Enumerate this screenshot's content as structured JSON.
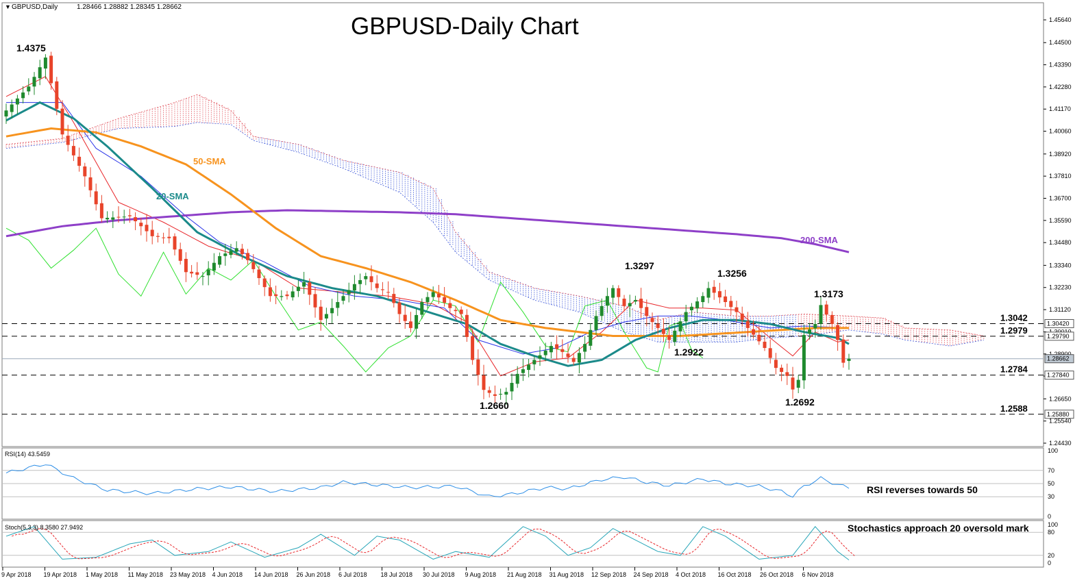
{
  "chart_data": {
    "type": "candlestick",
    "symbol_header": "GBPUSD,Daily",
    "ohlc_header": "1.28466 1.28882 1.28345 1.28662",
    "title": "GBPUSD-Daily Chart",
    "y_axis_ticks": [
      "1.45640",
      "1.44500",
      "1.43390",
      "1.42280",
      "1.41170",
      "1.40060",
      "1.38920",
      "1.37810",
      "1.36700",
      "1.35590",
      "1.34480",
      "1.33340",
      "1.32230",
      "1.31120",
      "1.30010",
      "1.28900",
      "1.27790",
      "1.26650",
      "1.25540",
      "1.24430"
    ],
    "ylim": [
      1.2443,
      1.4609
    ],
    "x_axis_labels": [
      "9 Apr 2018",
      "19 Apr 2018",
      "1 May 2018",
      "11 May 2018",
      "23 May 2018",
      "4 Jun 2018",
      "14 Jun 2018",
      "26 Jun 2018",
      "6 Jul 2018",
      "18 Jul 2018",
      "30 Jul 2018",
      "9 Aug 2018",
      "21 Aug 2018",
      "31 Aug 2018",
      "12 Sep 2018",
      "24 Sep 2018",
      "4 Oct 2018",
      "16 Oct 2018",
      "26 Oct 2018",
      "6 Nov 2018"
    ],
    "price_badges": [
      {
        "text": "1.30420",
        "value": 1.3042,
        "style": "outline"
      },
      {
        "text": "1.29790",
        "value": 1.2979,
        "style": "outline"
      },
      {
        "text": "1.28662",
        "value": 1.28662,
        "style": "solid"
      },
      {
        "text": "1.27840",
        "value": 1.2784,
        "style": "outline"
      },
      {
        "text": "1.25880",
        "value": 1.2588,
        "style": "outline"
      }
    ],
    "horizontal_levels": [
      {
        "label": "1.3042",
        "value": 1.3042
      },
      {
        "label": "1.2979",
        "value": 1.2979
      },
      {
        "label": "1.2784",
        "value": 1.2784
      },
      {
        "label": "1.2588",
        "value": 1.2588
      }
    ],
    "peak_annotations": [
      {
        "text": "1.4375",
        "value": 1.4375,
        "bar": 7
      },
      {
        "text": "1.2660",
        "value": 1.266,
        "bar": 85
      },
      {
        "text": "1.3297",
        "value": 1.3297,
        "bar": 108
      },
      {
        "text": "1.2922",
        "value": 1.2922,
        "bar": 118
      },
      {
        "text": "1.3256",
        "value": 1.3256,
        "bar": 125
      },
      {
        "text": "1.2692",
        "value": 1.2692,
        "bar": 140
      },
      {
        "text": "1.3173",
        "value": 1.3173,
        "bar": 145
      }
    ],
    "series_labels": [
      {
        "text": "50-SMA",
        "color": "#f7931e"
      },
      {
        "text": "20-SMA",
        "color": "#1b8a8a"
      },
      {
        "text": "200-SMA",
        "color": "#8e3fc8"
      }
    ],
    "candles_anchor_closes": [
      [
        0,
        1.411
      ],
      [
        4,
        1.423
      ],
      [
        7,
        1.4375
      ],
      [
        10,
        1.399
      ],
      [
        14,
        1.378
      ],
      [
        17,
        1.357
      ],
      [
        22,
        1.358
      ],
      [
        26,
        1.348
      ],
      [
        29,
        1.347
      ],
      [
        32,
        1.33
      ],
      [
        35,
        1.328
      ],
      [
        38,
        1.338
      ],
      [
        41,
        1.342
      ],
      [
        43,
        1.336
      ],
      [
        47,
        1.318
      ],
      [
        50,
        1.318
      ],
      [
        53,
        1.325
      ],
      [
        56,
        1.306
      ],
      [
        59,
        1.315
      ],
      [
        62,
        1.324
      ],
      [
        64,
        1.328
      ],
      [
        66,
        1.322
      ],
      [
        68,
        1.32
      ],
      [
        70,
        1.309
      ],
      [
        72,
        1.302
      ],
      [
        74,
        1.315
      ],
      [
        76,
        1.32
      ],
      [
        79,
        1.312
      ],
      [
        81,
        1.309
      ],
      [
        83,
        1.286
      ],
      [
        85,
        1.271
      ],
      [
        87,
        1.268
      ],
      [
        89,
        1.27
      ],
      [
        91,
        1.279
      ],
      [
        94,
        1.286
      ],
      [
        97,
        1.293
      ],
      [
        99,
        1.29
      ],
      [
        101,
        1.285
      ],
      [
        103,
        1.294
      ],
      [
        105,
        1.308
      ],
      [
        107,
        1.318
      ],
      [
        108,
        1.322
      ],
      [
        110,
        1.313
      ],
      [
        112,
        1.316
      ],
      [
        114,
        1.308
      ],
      [
        116,
        1.302
      ],
      [
        118,
        1.296
      ],
      [
        121,
        1.31
      ],
      [
        124,
        1.318
      ],
      [
        125,
        1.322
      ],
      [
        128,
        1.315
      ],
      [
        130,
        1.31
      ],
      [
        132,
        1.302
      ],
      [
        135,
        1.292
      ],
      [
        137,
        1.282
      ],
      [
        139,
        1.278
      ],
      [
        140,
        1.2712
      ],
      [
        141,
        1.276
      ],
      [
        142,
        1.2985
      ],
      [
        144,
        1.304
      ],
      [
        145,
        1.3135
      ],
      [
        147,
        1.304
      ],
      [
        148,
        1.296
      ],
      [
        149,
        1.2846
      ],
      [
        150,
        1.28662
      ]
    ],
    "sma20_anchor": [
      [
        0,
        1.406
      ],
      [
        6,
        1.415
      ],
      [
        12,
        1.407
      ],
      [
        18,
        1.393
      ],
      [
        26,
        1.372
      ],
      [
        34,
        1.35
      ],
      [
        42,
        1.338
      ],
      [
        50,
        1.328
      ],
      [
        58,
        1.322
      ],
      [
        66,
        1.318
      ],
      [
        74,
        1.311
      ],
      [
        82,
        1.304
      ],
      [
        88,
        1.294
      ],
      [
        94,
        1.288
      ],
      [
        100,
        1.283
      ],
      [
        106,
        1.286
      ],
      [
        112,
        1.296
      ],
      [
        118,
        1.302
      ],
      [
        124,
        1.306
      ],
      [
        130,
        1.306
      ],
      [
        136,
        1.304
      ],
      [
        142,
        1.3
      ],
      [
        148,
        1.297
      ],
      [
        150,
        1.294
      ]
    ],
    "sma50_anchor": [
      [
        0,
        1.398
      ],
      [
        8,
        1.402
      ],
      [
        16,
        1.4
      ],
      [
        24,
        1.393
      ],
      [
        32,
        1.384
      ],
      [
        40,
        1.369
      ],
      [
        48,
        1.352
      ],
      [
        56,
        1.338
      ],
      [
        64,
        1.332
      ],
      [
        72,
        1.325
      ],
      [
        80,
        1.316
      ],
      [
        88,
        1.306
      ],
      [
        96,
        1.302
      ],
      [
        102,
        1.3
      ],
      [
        108,
        1.298
      ],
      [
        114,
        1.298
      ],
      [
        120,
        1.298
      ],
      [
        126,
        1.299
      ],
      [
        132,
        1.3
      ],
      [
        138,
        1.301
      ],
      [
        144,
        1.302
      ],
      [
        150,
        1.302
      ]
    ],
    "sma200_anchor": [
      [
        0,
        1.348
      ],
      [
        10,
        1.353
      ],
      [
        20,
        1.356
      ],
      [
        30,
        1.358
      ],
      [
        40,
        1.36
      ],
      [
        50,
        1.361
      ],
      [
        60,
        1.3605
      ],
      [
        70,
        1.36
      ],
      [
        80,
        1.359
      ],
      [
        90,
        1.357
      ],
      [
        100,
        1.355
      ],
      [
        110,
        1.353
      ],
      [
        120,
        1.351
      ],
      [
        130,
        1.349
      ],
      [
        138,
        1.347
      ],
      [
        144,
        1.344
      ],
      [
        150,
        1.34
      ]
    ],
    "tenkan_anchor": [
      [
        0,
        1.418
      ],
      [
        7,
        1.428
      ],
      [
        12,
        1.405
      ],
      [
        20,
        1.365
      ],
      [
        28,
        1.355
      ],
      [
        36,
        1.343
      ],
      [
        44,
        1.336
      ],
      [
        52,
        1.322
      ],
      [
        60,
        1.32
      ],
      [
        68,
        1.318
      ],
      [
        76,
        1.314
      ],
      [
        82,
        1.305
      ],
      [
        88,
        1.278
      ],
      [
        94,
        1.285
      ],
      [
        100,
        1.287
      ],
      [
        106,
        1.3
      ],
      [
        112,
        1.316
      ],
      [
        118,
        1.312
      ],
      [
        124,
        1.312
      ],
      [
        130,
        1.311
      ],
      [
        136,
        1.297
      ],
      [
        140,
        1.288
      ],
      [
        144,
        1.3
      ],
      [
        148,
        1.295
      ],
      [
        150,
        1.296
      ]
    ],
    "kijun_anchor": [
      [
        0,
        1.415
      ],
      [
        10,
        1.415
      ],
      [
        16,
        1.392
      ],
      [
        24,
        1.378
      ],
      [
        32,
        1.358
      ],
      [
        38,
        1.345
      ],
      [
        46,
        1.335
      ],
      [
        54,
        1.323
      ],
      [
        62,
        1.318
      ],
      [
        70,
        1.316
      ],
      [
        78,
        1.312
      ],
      [
        84,
        1.296
      ],
      [
        92,
        1.289
      ],
      [
        98,
        1.292
      ],
      [
        104,
        1.3
      ],
      [
        110,
        1.305
      ],
      [
        116,
        1.308
      ],
      [
        122,
        1.308
      ],
      [
        128,
        1.306
      ],
      [
        136,
        1.302
      ],
      [
        142,
        1.303
      ],
      [
        150,
        1.302
      ]
    ],
    "chikou_anchor": [
      [
        0,
        1.352
      ],
      [
        4,
        1.346
      ],
      [
        8,
        1.332
      ],
      [
        12,
        1.341
      ],
      [
        16,
        1.352
      ],
      [
        20,
        1.329
      ],
      [
        24,
        1.318
      ],
      [
        28,
        1.34
      ],
      [
        32,
        1.319
      ],
      [
        36,
        1.332
      ],
      [
        40,
        1.326
      ],
      [
        44,
        1.336
      ],
      [
        48,
        1.318
      ],
      [
        52,
        1.301
      ],
      [
        56,
        1.305
      ],
      [
        60,
        1.293
      ],
      [
        64,
        1.28
      ],
      [
        68,
        1.292
      ],
      [
        72,
        1.298
      ],
      [
        76,
        1.316
      ],
      [
        80,
        1.313
      ],
      [
        84,
        1.295
      ],
      [
        88,
        1.325
      ],
      [
        92,
        1.31
      ],
      [
        96,
        1.293
      ],
      [
        100,
        1.29
      ],
      [
        103,
        1.313
      ],
      [
        107,
        1.316
      ],
      [
        110,
        1.3
      ],
      [
        114,
        1.282
      ],
      [
        116,
        1.28
      ],
      [
        118,
        1.303
      ],
      [
        120,
        1.305
      ],
      [
        122,
        1.291
      ],
      [
        124,
        1.287
      ]
    ],
    "kumo_upper_anchor": [
      [
        0,
        1.394
      ],
      [
        10,
        1.397
      ],
      [
        20,
        1.407
      ],
      [
        30,
        1.415
      ],
      [
        34,
        1.419
      ],
      [
        40,
        1.411
      ],
      [
        44,
        1.398
      ],
      [
        52,
        1.394
      ],
      [
        60,
        1.386
      ],
      [
        70,
        1.38
      ],
      [
        76,
        1.372
      ],
      [
        80,
        1.35
      ],
      [
        86,
        1.33
      ],
      [
        94,
        1.322
      ],
      [
        102,
        1.318
      ],
      [
        110,
        1.313
      ],
      [
        116,
        1.306
      ],
      [
        122,
        1.31
      ],
      [
        130,
        1.308
      ],
      [
        136,
        1.308
      ],
      [
        142,
        1.309
      ],
      [
        150,
        1.308
      ],
      [
        156,
        1.307
      ],
      [
        160,
        1.302
      ],
      [
        168,
        1.301
      ],
      [
        174,
        1.298
      ]
    ],
    "kumo_lower_anchor": [
      [
        0,
        1.392
      ],
      [
        10,
        1.395
      ],
      [
        20,
        1.402
      ],
      [
        30,
        1.403
      ],
      [
        34,
        1.405
      ],
      [
        40,
        1.404
      ],
      [
        44,
        1.396
      ],
      [
        52,
        1.39
      ],
      [
        60,
        1.382
      ],
      [
        70,
        1.37
      ],
      [
        76,
        1.355
      ],
      [
        80,
        1.34
      ],
      [
        86,
        1.326
      ],
      [
        94,
        1.316
      ],
      [
        102,
        1.31
      ],
      [
        110,
        1.3
      ],
      [
        116,
        1.295
      ],
      [
        122,
        1.295
      ],
      [
        130,
        1.295
      ],
      [
        136,
        1.297
      ],
      [
        142,
        1.298
      ],
      [
        150,
        1.301
      ],
      [
        156,
        1.299
      ],
      [
        160,
        1.296
      ],
      [
        168,
        1.293
      ],
      [
        174,
        1.296
      ]
    ],
    "rsi": {
      "header": "RSI(14) 43.5459",
      "ticks": [
        "100",
        "70",
        "50",
        "30",
        "0"
      ],
      "levels": [
        70,
        50,
        30
      ],
      "annotation": "RSI reverses towards 50",
      "anchor": [
        [
          0,
          66
        ],
        [
          7,
          80
        ],
        [
          12,
          58
        ],
        [
          18,
          40
        ],
        [
          26,
          35
        ],
        [
          34,
          42
        ],
        [
          40,
          45
        ],
        [
          48,
          38
        ],
        [
          56,
          44
        ],
        [
          60,
          52
        ],
        [
          66,
          48
        ],
        [
          72,
          44
        ],
        [
          80,
          46
        ],
        [
          86,
          30
        ],
        [
          90,
          34
        ],
        [
          96,
          44
        ],
        [
          100,
          42
        ],
        [
          106,
          56
        ],
        [
          110,
          60
        ],
        [
          114,
          52
        ],
        [
          118,
          47
        ],
        [
          124,
          57
        ],
        [
          128,
          50
        ],
        [
          134,
          46
        ],
        [
          138,
          38
        ],
        [
          140,
          31
        ],
        [
          142,
          46
        ],
        [
          145,
          58
        ],
        [
          148,
          48
        ],
        [
          150,
          44
        ]
      ]
    },
    "stochastic": {
      "header": "Stoch(5,3,3) 8.3580 27.9492",
      "ticks": [
        "100",
        "80",
        "20",
        "0"
      ],
      "levels": [
        80,
        20
      ],
      "annotation": "Stochastics approach 20 oversold mark",
      "anchor": [
        [
          0,
          70
        ],
        [
          5,
          95
        ],
        [
          10,
          10
        ],
        [
          16,
          15
        ],
        [
          22,
          50
        ],
        [
          26,
          60
        ],
        [
          30,
          20
        ],
        [
          36,
          30
        ],
        [
          40,
          55
        ],
        [
          46,
          15
        ],
        [
          52,
          40
        ],
        [
          56,
          75
        ],
        [
          62,
          20
        ],
        [
          66,
          70
        ],
        [
          70,
          60
        ],
        [
          76,
          10
        ],
        [
          80,
          30
        ],
        [
          86,
          15
        ],
        [
          92,
          95
        ],
        [
          96,
          70
        ],
        [
          100,
          20
        ],
        [
          104,
          40
        ],
        [
          108,
          90
        ],
        [
          112,
          60
        ],
        [
          116,
          30
        ],
        [
          120,
          20
        ],
        [
          124,
          95
        ],
        [
          128,
          70
        ],
        [
          134,
          10
        ],
        [
          140,
          20
        ],
        [
          144,
          95
        ],
        [
          148,
          30
        ],
        [
          150,
          8
        ]
      ]
    }
  }
}
